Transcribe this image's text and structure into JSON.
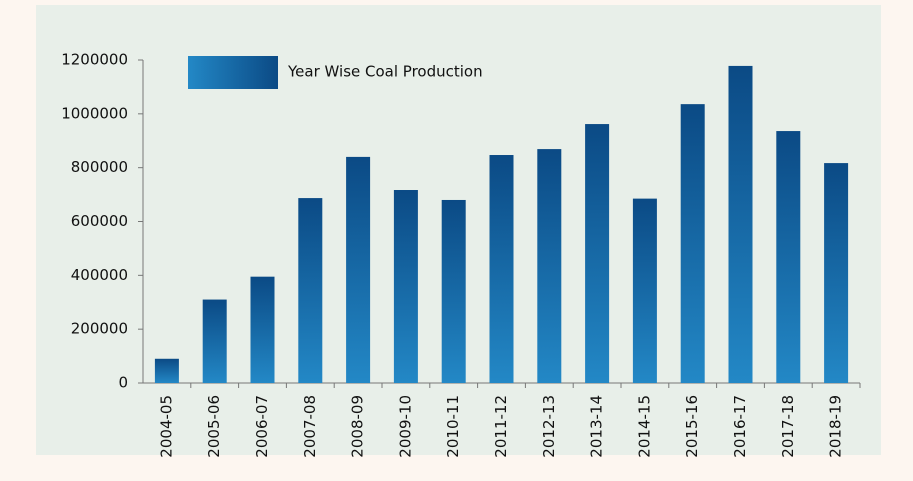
{
  "chart_data": {
    "type": "bar",
    "categories": [
      "2004-05",
      "2005-06",
      "2006-07",
      "2007-08",
      "2008-09",
      "2009-10",
      "2010-11",
      "2011-12",
      "2012-13",
      "2013-14",
      "2014-15",
      "2015-16",
      "2016-17",
      "2017-18",
      "2018-19"
    ],
    "series": [
      {
        "name": "Year Wise Coal Production",
        "colors": [
          "#2388c6",
          "#0b4a85"
        ],
        "values": [
          90000,
          310000,
          395000,
          687000,
          840000,
          717000,
          680000,
          847000,
          869000,
          962000,
          685000,
          1036000,
          1178000,
          936000,
          817000
        ]
      }
    ],
    "ylim": [
      0,
      1200000
    ],
    "yticks": [
      0,
      200000,
      400000,
      600000,
      800000,
      1000000,
      1200000
    ],
    "legend": "top-left"
  }
}
